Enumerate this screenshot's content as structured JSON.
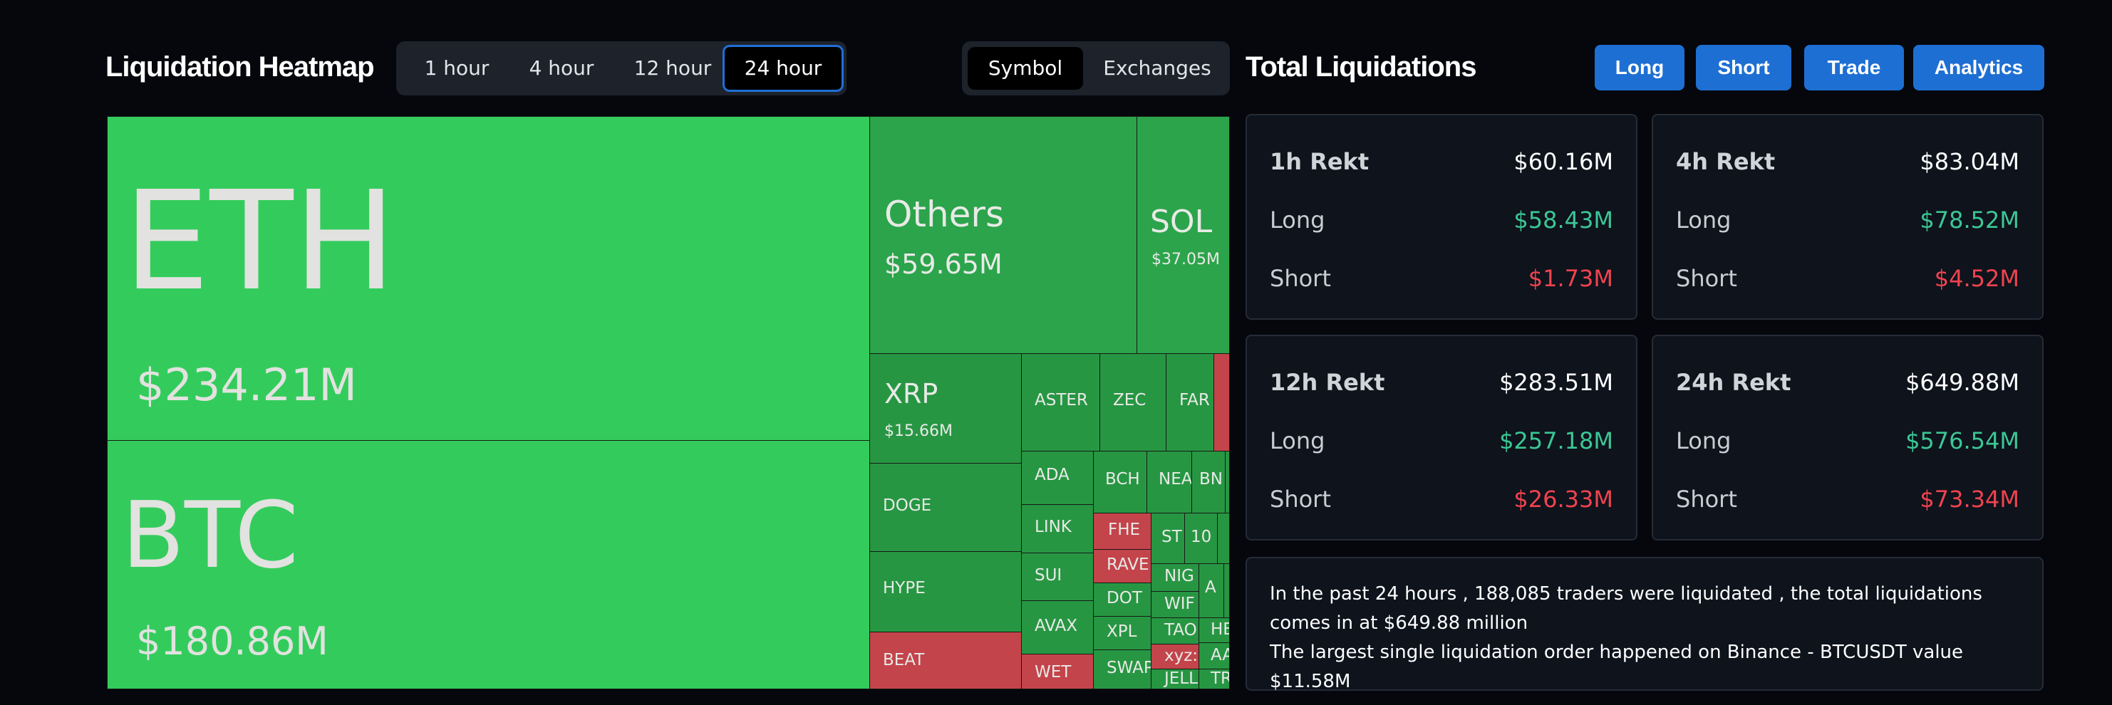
{
  "heatmap": {
    "title": "Liquidation Heatmap",
    "time_tabs": [
      "1 hour",
      "4 hour",
      "12 hour",
      "24 hour"
    ],
    "active_time": "24 hour",
    "view_tabs": [
      "Symbol",
      "Exchanges"
    ],
    "active_view": "Symbol"
  },
  "treemap": {
    "eth": {
      "name": "ETH",
      "value": "$234.21M"
    },
    "btc": {
      "name": "BTC",
      "value": "$180.86M"
    },
    "others": {
      "name": "Others",
      "value": "$59.65M"
    },
    "sol": {
      "name": "SOL",
      "value": "$37.05M"
    },
    "xrp": {
      "name": "XRP",
      "value": "$15.66M"
    },
    "small": [
      "ASTER",
      "ZEC",
      "FAR",
      "DOGE",
      "ADA",
      "BCH",
      "NEA",
      "BN",
      "LINK",
      "FHE",
      "ST",
      "10",
      "HYPE",
      "SUI",
      "RAVE",
      "NIG",
      "WIF",
      "A",
      "DOT",
      "TAO",
      "HE",
      "AVAX",
      "XPL",
      "xyz:",
      "AA",
      "BEAT",
      "WET",
      "SWAP",
      "JELL",
      "TR"
    ]
  },
  "totals": {
    "title": "Total Liquidations",
    "buttons": [
      "Long",
      "Short",
      "Trade",
      "Analytics"
    ],
    "labels": {
      "long": "Long",
      "short": "Short"
    },
    "cards": [
      {
        "period": "1h Rekt",
        "total": "$60.16M",
        "long": "$58.43M",
        "short": "$1.73M"
      },
      {
        "period": "4h Rekt",
        "total": "$83.04M",
        "long": "$78.52M",
        "short": "$4.52M"
      },
      {
        "period": "12h Rekt",
        "total": "$283.51M",
        "long": "$257.18M",
        "short": "$26.33M"
      },
      {
        "period": "24h Rekt",
        "total": "$649.88M",
        "long": "$576.54M",
        "short": "$73.34M"
      }
    ],
    "summary_line1": "In the past 24 hours , 188,085 traders were liquidated , the total liquidations comes in at $649.88 million",
    "summary_line2": "The largest single liquidation order happened on Binance - BTCUSDT value $11.58M"
  },
  "colors": {
    "long_green": "#3cc795",
    "short_red": "#f0434f",
    "accent_blue": "#1e6fd3"
  }
}
